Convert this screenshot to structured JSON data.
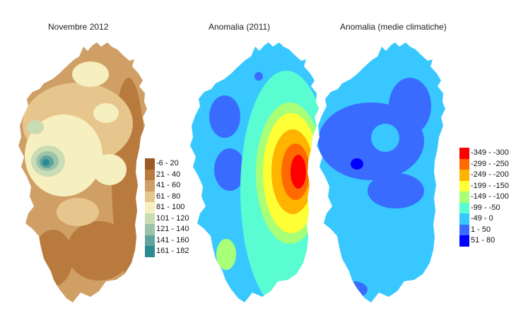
{
  "panels": [
    {
      "title": "Novembre 2012",
      "legend": [
        {
          "label": "-6 - 20",
          "color": "#9c5a24"
        },
        {
          "label": "21 - 40",
          "color": "#b97a3e"
        },
        {
          "label": "41 - 60",
          "color": "#cf9f66"
        },
        {
          "label": "61 - 80",
          "color": "#e6c68d"
        },
        {
          "label": "81 - 100",
          "color": "#f6efbf"
        },
        {
          "label": "101 - 120",
          "color": "#c9dcb4"
        },
        {
          "label": "121 - 140",
          "color": "#9cc3aa"
        },
        {
          "label": "141 - 160",
          "color": "#5fa59d"
        },
        {
          "label": "161 - 182",
          "color": "#2a8b93"
        }
      ]
    },
    {
      "title": "Anomalia (2011)",
      "legend": []
    },
    {
      "title": "Anomalia (medie climatiche)",
      "legend": [
        {
          "label": "-349 - -300",
          "color": "#ff0000"
        },
        {
          "label": "-299 - -250",
          "color": "#ff6a00"
        },
        {
          "label": "-249 - -200",
          "color": "#ffb400"
        },
        {
          "label": "-199 - -150",
          "color": "#ffff35"
        },
        {
          "label": "-149 - -100",
          "color": "#a8ff78"
        },
        {
          "label": "-99 - -50",
          "color": "#5afcd2"
        },
        {
          "label": "-49 - 0",
          "color": "#38c8ff"
        },
        {
          "label": "1 - 50",
          "color": "#3a6bff"
        },
        {
          "label": "51 - 80",
          "color": "#0000ff"
        }
      ]
    }
  ]
}
